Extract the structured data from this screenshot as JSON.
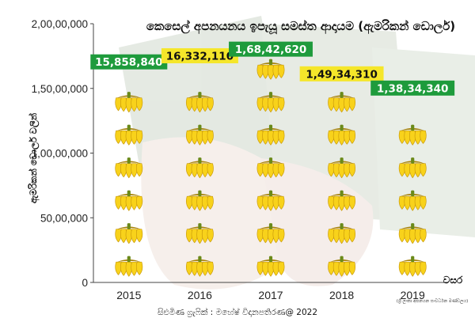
{
  "chart_data": {
    "type": "bar",
    "title": "කෙසෙල් අපනයනය ඉපැයූ සමස්ත ආදායම (ඇමරිකන් ඩොලර්)",
    "xlabel": "වසර",
    "ylabel": "ඇමරිකන් ඩොලර් වලින්",
    "categories": [
      "2015",
      "2016",
      "2017",
      "2018",
      "2019"
    ],
    "values": [
      15858840,
      16332110,
      16842620,
      14934310,
      13834340
    ],
    "data_labels": [
      "15,858,840",
      "16,332,110",
      "1,68,42,620",
      "1,49,34,310",
      "1,38,34,340"
    ],
    "label_colors": [
      "#1e9b3c",
      "#f5e62a",
      "#1e9b3c",
      "#f5e62a",
      "#1e9b3c"
    ],
    "label_text_colors": [
      "#ffffff",
      "#111111",
      "#ffffff",
      "#111111",
      "#ffffff"
    ],
    "ylim": [
      0,
      20000000
    ],
    "yticks": [
      0,
      5000000,
      10000000,
      15000000,
      20000000
    ],
    "ytick_labels": [
      "0",
      "50,00,000",
      "1,00,00,000",
      "1,50,00,000",
      "2,00,00,000"
    ],
    "grid": false,
    "mark_style": "banana-bunch-pictograph",
    "banana_color": "#f8d21b",
    "credit": "සිළුමිණ ග්‍රැෆික් : මහේෂ් විදානපතිරණ@ 2022",
    "source": "(ශ්‍රී ලංකා අපනයන සංවර්ධන මණ්ඩලය)"
  }
}
